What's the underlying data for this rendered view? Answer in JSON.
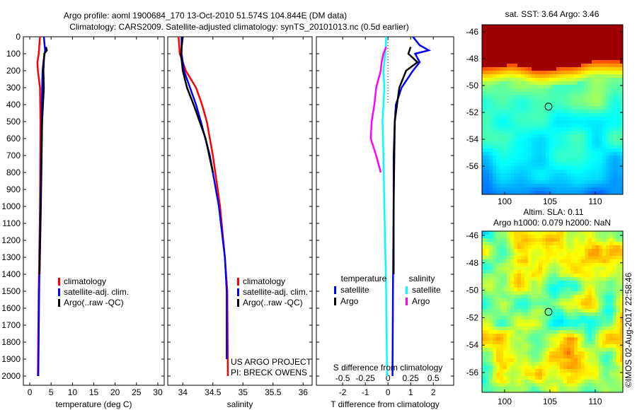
{
  "chart_data": [
    {
      "type": "line",
      "id": "temp",
      "xlabel": "temperature (deg C)",
      "xlim": [
        -1.5,
        31.5
      ],
      "ylim": [
        0,
        2095
      ],
      "xticks": [
        "0",
        "5",
        "10",
        "15",
        "20",
        "25",
        "30"
      ],
      "xtickvals": [
        0,
        5,
        10,
        15,
        20,
        25,
        30
      ],
      "yticks": [
        "0",
        "100",
        "200",
        "300",
        "400",
        "500",
        "600",
        "700",
        "800",
        "900",
        "1000",
        "1100",
        "1200",
        "1300",
        "1400",
        "1500",
        "1600",
        "1700",
        "1800",
        "1900",
        "2000"
      ],
      "legend": [
        "climatology",
        "satellite-adj. clim.",
        "Argo(..raw -QC)"
      ],
      "series": [
        {
          "name": "climatology",
          "color": "#ff0000",
          "depth": [
            0,
            100,
            150,
            200,
            300,
            500,
            1000,
            1500,
            2000
          ],
          "values": [
            2.4,
            2.1,
            1.8,
            1.9,
            2.4,
            2.5,
            2.4,
            2.1,
            1.9
          ]
        },
        {
          "name": "satellite-adj. clim.",
          "color": "#0000ff",
          "depth": [
            0,
            80,
            150,
            200,
            300,
            500,
            1000,
            1500,
            2000
          ],
          "values": [
            3.3,
            3.6,
            3.2,
            3.0,
            2.9,
            2.8,
            2.5,
            2.2,
            2.0
          ]
        },
        {
          "name": "Argo(..raw -QC)",
          "color": "#000000",
          "depth": [
            60,
            80,
            100,
            150,
            200,
            300,
            400,
            500,
            1000,
            1400
          ],
          "values": [
            3.8,
            4.0,
            3.4,
            3.3,
            3.2,
            3.3,
            3.1,
            2.9,
            2.6,
            2.3
          ]
        }
      ]
    },
    {
      "type": "line",
      "id": "sal",
      "xlabel": "salinity",
      "xlim": [
        33.75,
        36.15
      ],
      "ylim": [
        0,
        2095
      ],
      "xticks": [
        "34",
        "34.5",
        "35",
        "35.5",
        "36"
      ],
      "xtickvals": [
        34,
        34.5,
        35,
        35.5,
        36
      ],
      "legend": [
        "climatology",
        "satellite-adj. clim.",
        "Argo(..raw -QC)"
      ],
      "annotation": [
        "US ARGO PROJECT",
        "PI: BRECK OWENS"
      ],
      "series": [
        {
          "name": "climatology",
          "color": "#ff0000",
          "depth": [
            0,
            100,
            200,
            300,
            400,
            500,
            700,
            1000,
            1300,
            1500,
            2000
          ],
          "values": [
            33.93,
            33.95,
            34.05,
            34.22,
            34.32,
            34.4,
            34.5,
            34.62,
            34.7,
            34.74,
            34.75
          ]
        },
        {
          "name": "satellite-adj. clim.",
          "color": "#0000ff",
          "depth": [
            0,
            100,
            200,
            300,
            400,
            500,
            700,
            1000,
            1300,
            1500,
            1900
          ],
          "values": [
            33.98,
            33.98,
            34.02,
            34.12,
            34.22,
            34.3,
            34.45,
            34.6,
            34.7,
            34.73,
            34.73
          ]
        },
        {
          "name": "Argo(..raw -QC)",
          "color": "#000000",
          "depth": [
            0,
            100,
            200,
            300,
            400,
            500,
            600,
            700,
            800
          ],
          "values": [
            34.0,
            33.97,
            34.0,
            34.07,
            34.18,
            34.28,
            34.38,
            34.44,
            34.5
          ]
        }
      ]
    },
    {
      "type": "line",
      "id": "diff",
      "xlabel": "T difference from climatology",
      "xlabel2": "S difference from climatology",
      "xlim": [
        -3.16,
        2.9
      ],
      "xticks": [
        "-2",
        "-1",
        "0",
        "1",
        "2"
      ],
      "xtickvals": [
        -2,
        -1,
        0,
        1,
        2
      ],
      "xticks2": [
        "-0.5",
        "-0.25",
        "0",
        "0.25",
        "0.5"
      ],
      "xtickvals2": [
        -0.5,
        -0.25,
        0,
        0.25,
        0.5
      ],
      "legend_headers": [
        "temperature",
        "salinity"
      ],
      "legend": [
        "satellite",
        "Argo",
        "satellite",
        "Argo"
      ],
      "series": [
        {
          "name": "T satellite",
          "color": "#0000ff",
          "depth": [
            0,
            50,
            80,
            100,
            150,
            200,
            300,
            400,
            500,
            700,
            1000,
            1500,
            2000
          ],
          "values": [
            1.1,
            1.4,
            1.8,
            1.2,
            1.4,
            1.1,
            0.6,
            0.35,
            0.3,
            0.25,
            0.25,
            0.22,
            0.2
          ]
        },
        {
          "name": "T Argo",
          "color": "#000000",
          "depth": [
            60,
            100,
            150,
            200,
            300,
            400,
            500,
            700,
            1000,
            1400
          ],
          "values": [
            1.0,
            0.9,
            1.3,
            0.8,
            0.5,
            0.4,
            0.3,
            0.28,
            0.25,
            0.25
          ]
        },
        {
          "name": "S satellite",
          "color": "#00ffff",
          "depth": [
            0,
            100,
            200,
            300,
            500,
            700,
            1000,
            1500,
            2000
          ],
          "values": [
            -0.02,
            -0.03,
            -0.05,
            -0.04,
            -0.06,
            -0.05,
            -0.04,
            -0.02,
            -0.01
          ]
        },
        {
          "name": "S Argo",
          "color": "#ff00ff",
          "depth": [
            60,
            100,
            150,
            200,
            300,
            400,
            500,
            600,
            700,
            800
          ],
          "values": [
            -0.02,
            -0.05,
            -0.07,
            -0.08,
            -0.13,
            -0.15,
            -0.18,
            -0.19,
            -0.13,
            -0.08
          ]
        }
      ]
    }
  ],
  "title_line1": "Argo profile: aoml 1900684_170 13-Oct-2010 51.574S 104.844E (DM data)",
  "title_line2": "Climatology: CARS2009. Satellite-adjusted climatology: synTS_20101013.nc (0.5d earlier)",
  "maps": [
    {
      "title": "sat. SST: 3.64 Argo: 3.46",
      "lonticks": [
        "100",
        "105",
        "110"
      ],
      "latticks": [
        "-46",
        "-48",
        "-50",
        "-52",
        "-54",
        "-56"
      ],
      "marker_lon": 104.844,
      "marker_lat": -51.574
    },
    {
      "title1": "Altim. SLA: 0.11",
      "title2": "Argo h1000: 0.079 h2000: NaN",
      "lonticks": [
        "100",
        "105",
        "110"
      ],
      "latticks": [
        "-46",
        "-48",
        "-50",
        "-52",
        "-54",
        "-56"
      ],
      "marker_lon": 104.844,
      "marker_lat": -51.574
    }
  ],
  "credit": "©IMOS 02-Aug-2017 22:58:46"
}
